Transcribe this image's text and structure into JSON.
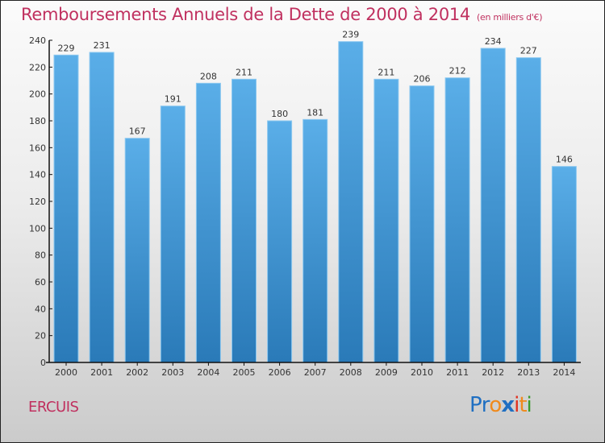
{
  "header": {
    "title": "Remboursements Annuels de la Dette de 2000 à 2014",
    "subtitle": "(en milliers d'€)"
  },
  "footer": {
    "location": "ERCUIS",
    "logo": {
      "letters": [
        {
          "char": "P",
          "color": "#1f6fc2"
        },
        {
          "char": "r",
          "color": "#1f6fc2"
        },
        {
          "char": "o",
          "color": "#f08a1c"
        },
        {
          "char": "x",
          "color": "#1f6fc2"
        },
        {
          "char": "i",
          "color": "#e0301e"
        },
        {
          "char": "t",
          "color": "#f08a1c"
        },
        {
          "char": "i",
          "color": "#3a9a2c"
        }
      ]
    }
  },
  "colors": {
    "title": "#c0305f",
    "bar_top": "#5aaee8",
    "bar_bottom": "#2a7ab8",
    "bar_edge": "#8cc8f0"
  },
  "chart_data": {
    "type": "bar",
    "title": "Remboursements Annuels de la Dette de 2000 à 2014",
    "subtitle": "(en milliers d'€)",
    "xlabel": "",
    "ylabel": "",
    "categories": [
      "2000",
      "2001",
      "2002",
      "2003",
      "2004",
      "2005",
      "2006",
      "2007",
      "2008",
      "2009",
      "2010",
      "2011",
      "2012",
      "2013",
      "2014"
    ],
    "values": [
      229,
      231,
      167,
      191,
      208,
      211,
      180,
      181,
      239,
      211,
      206,
      212,
      234,
      227,
      146
    ],
    "ylim": [
      0,
      240
    ],
    "yticks": [
      0,
      20,
      40,
      60,
      80,
      100,
      120,
      140,
      160,
      180,
      200,
      220,
      240
    ],
    "grid": false,
    "legend": "none",
    "data_labels": true
  }
}
